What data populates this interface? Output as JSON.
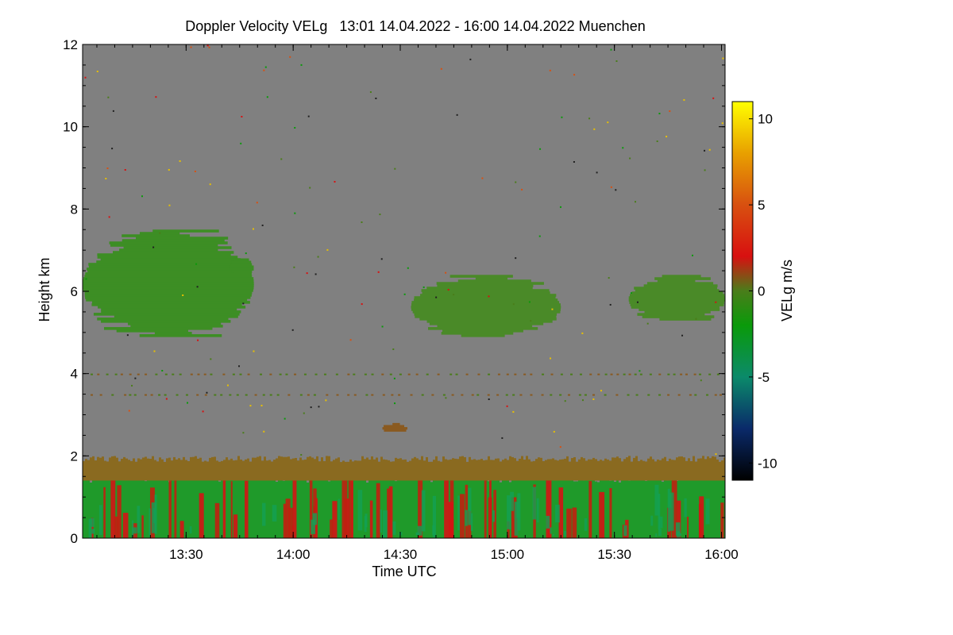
{
  "chart_data": {
    "type": "heatmap",
    "title": "Doppler Velocity VELg   13:01 14.04.2022 - 16:00 14.04.2022 Muenchen",
    "xlabel": "Time UTC",
    "ylabel": "Height km",
    "xlim_minutes_utc": [
      781,
      961
    ],
    "ylim_km": [
      0,
      12
    ],
    "x_ticks": [
      {
        "value": 810,
        "label": "13:30"
      },
      {
        "value": 840,
        "label": "14:00"
      },
      {
        "value": 870,
        "label": "14:30"
      },
      {
        "value": 900,
        "label": "15:00"
      },
      {
        "value": 930,
        "label": "15:30"
      },
      {
        "value": 960,
        "label": "16:00"
      }
    ],
    "y_ticks": [
      {
        "value": 0,
        "label": "0"
      },
      {
        "value": 2,
        "label": "2"
      },
      {
        "value": 4,
        "label": "4"
      },
      {
        "value": 6,
        "label": "6"
      },
      {
        "value": 8,
        "label": "8"
      },
      {
        "value": 10,
        "label": "10"
      },
      {
        "value": 12,
        "label": "12"
      }
    ],
    "background_color": "#808080",
    "colorbar": {
      "label": "VELg m/s",
      "range": [
        -11,
        11
      ],
      "ticks": [
        {
          "value": 10,
          "label": "10"
        },
        {
          "value": 5,
          "label": "5"
        },
        {
          "value": 0,
          "label": "0"
        },
        {
          "value": -5,
          "label": "-5"
        },
        {
          "value": -10,
          "label": "-10"
        }
      ],
      "colormap": [
        {
          "v": -11,
          "c": "#000000"
        },
        {
          "v": -8,
          "c": "#0a2a6a"
        },
        {
          "v": -5,
          "c": "#0b8a6a"
        },
        {
          "v": -2,
          "c": "#0a9a0a"
        },
        {
          "v": 0,
          "c": "#4a7d1a"
        },
        {
          "v": 2,
          "c": "#d81010"
        },
        {
          "v": 5,
          "c": "#d85010"
        },
        {
          "v": 8,
          "c": "#e8a000"
        },
        {
          "v": 11,
          "c": "#ffff00"
        }
      ]
    },
    "regions": [
      {
        "name": "boundary-layer",
        "t_start": 781,
        "t_end": 961,
        "h_bottom": 0,
        "h_top": 1.8,
        "velocity": -1.5,
        "color": "#1f9a2a"
      },
      {
        "name": "boundary-layer-top",
        "t_start": 781,
        "t_end": 961,
        "h_bottom": 1.4,
        "h_top": 2.0,
        "velocity": 1.5,
        "color": "#8a6a20"
      },
      {
        "name": "cloud-left",
        "t_start": 781,
        "t_end": 829,
        "h_bottom": 4.9,
        "h_top": 7.5,
        "velocity": -0.5,
        "color": "#3d8e24"
      },
      {
        "name": "cloud-small",
        "t_start": 822,
        "t_end": 829,
        "h_bottom": 6.4,
        "h_top": 6.8,
        "velocity": -0.5,
        "color": "#3d8e24"
      },
      {
        "name": "cloud-middle",
        "t_start": 873,
        "t_end": 915,
        "h_bottom": 4.9,
        "h_top": 6.4,
        "velocity": -0.5,
        "color": "#4a8a28"
      },
      {
        "name": "cloud-right",
        "t_start": 934,
        "t_end": 961,
        "h_bottom": 5.3,
        "h_top": 6.4,
        "velocity": -0.5,
        "color": "#4a8a28"
      },
      {
        "name": "patch-2.7km",
        "t_start": 865,
        "t_end": 872,
        "h_bottom": 2.6,
        "h_top": 2.8,
        "velocity": 2,
        "color": "#8a5a20"
      }
    ]
  }
}
